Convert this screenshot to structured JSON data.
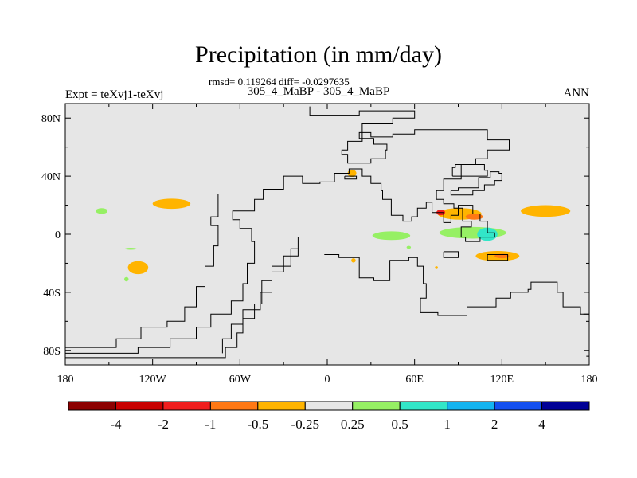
{
  "chart_data": {
    "type": "heatmap",
    "title": "Precipitation (in mm/day)",
    "stats_line": "rmsd= 0.119264 diff= -0.0297635",
    "subtitle": "305_4_MaBP - 305_4_MaBP",
    "left_label": "Expt = teXvj1-teXvj",
    "right_label": "ANN",
    "xlim": [
      -180,
      180
    ],
    "ylim": [
      -90,
      90
    ],
    "x_ticks": [
      {
        "value": -180,
        "label": "180"
      },
      {
        "value": -120,
        "label": "120W"
      },
      {
        "value": -60,
        "label": "60W"
      },
      {
        "value": 0,
        "label": "0"
      },
      {
        "value": 60,
        "label": "60E"
      },
      {
        "value": 120,
        "label": "120E"
      },
      {
        "value": 180,
        "label": "180"
      }
    ],
    "y_ticks": [
      {
        "value": 80,
        "label": "80N"
      },
      {
        "value": 40,
        "label": "40N"
      },
      {
        "value": 0,
        "label": "0"
      },
      {
        "value": -40,
        "label": "40S"
      },
      {
        "value": -80,
        "label": "80S"
      }
    ],
    "background_color": "#e6e6e6",
    "colorbar": {
      "colors": [
        "#8c0000",
        "#c80000",
        "#f01e1e",
        "#ff7814",
        "#ffb400",
        "#e6e6e6",
        "#96f064",
        "#32e6c8",
        "#14b4f0",
        "#1450f0",
        "#000096"
      ],
      "labels": [
        "-4",
        "-2",
        "-1",
        "-0.5",
        "-0.25",
        "0.25",
        "0.5",
        "1",
        "2",
        "4"
      ]
    },
    "anomalies": [
      {
        "lon": -107,
        "lat": 21,
        "rlon": 13,
        "rlat": 3.5,
        "color": "#ffb400"
      },
      {
        "lon": -130,
        "lat": -23,
        "rlon": 7,
        "rlat": 4.5,
        "color": "#ffb400"
      },
      {
        "lon": 91,
        "lat": 14,
        "rlon": 15,
        "rlat": 4,
        "color": "#ffb400"
      },
      {
        "lon": 101,
        "lat": 12,
        "rlon": 6,
        "rlat": 2,
        "color": "#ff7814"
      },
      {
        "lon": 150,
        "lat": 16,
        "rlon": 17,
        "rlat": 4,
        "color": "#ffb400"
      },
      {
        "lon": 117,
        "lat": -15,
        "rlon": 15,
        "rlat": 3.5,
        "color": "#ffb400"
      },
      {
        "lon": 120,
        "lat": -15,
        "rlon": 5,
        "rlat": 1.5,
        "color": "#ff7814"
      },
      {
        "lon": 17,
        "lat": 42,
        "rlon": 3,
        "rlat": 2.5,
        "color": "#ffb400"
      },
      {
        "lon": 78,
        "lat": 15,
        "rlon": 3,
        "rlat": 2,
        "color": "#f01e1e"
      },
      {
        "lon": 18,
        "lat": -18,
        "rlon": 1.5,
        "rlat": 1.5,
        "color": "#ffb400"
      },
      {
        "lon": 75,
        "lat": -23,
        "rlon": 1,
        "rlat": 1,
        "color": "#ffb400"
      },
      {
        "lon": -155,
        "lat": 16,
        "rlon": 4,
        "rlat": 2,
        "color": "#96f064"
      },
      {
        "lon": -135,
        "lat": -10,
        "rlon": 4,
        "rlat": 0.7,
        "color": "#96f064"
      },
      {
        "lon": -138,
        "lat": -31,
        "rlon": 1.5,
        "rlat": 1.5,
        "color": "#96f064"
      },
      {
        "lon": 44,
        "lat": -1,
        "rlon": 13,
        "rlat": 3,
        "color": "#96f064"
      },
      {
        "lon": 100,
        "lat": 1,
        "rlon": 23,
        "rlat": 4,
        "color": "#96f064"
      },
      {
        "lon": 110,
        "lat": 0,
        "rlon": 7,
        "rlat": 4.5,
        "color": "#32e6c8"
      },
      {
        "lon": 56,
        "lat": -9,
        "rlon": 1.5,
        "rlat": 1,
        "color": "#96f064"
      }
    ],
    "coastlines": [
      [
        [
          -180,
          -82
        ],
        [
          -145,
          -82
        ],
        [
          -130,
          -78
        ],
        [
          -108,
          -72
        ],
        [
          -90,
          -64
        ],
        [
          -80,
          -55
        ],
        [
          -66,
          -46
        ],
        [
          -58,
          -34
        ],
        [
          -55,
          -20
        ],
        [
          -50,
          -5
        ],
        [
          -52,
          4
        ],
        [
          -60,
          10
        ],
        [
          -65,
          16
        ],
        [
          -50,
          24
        ],
        [
          -44,
          31
        ],
        [
          -30,
          40
        ],
        [
          -22,
          40
        ],
        [
          -17,
          35
        ],
        [
          -5,
          36
        ],
        [
          5,
          42
        ],
        [
          15,
          45
        ],
        [
          24,
          40
        ],
        [
          30,
          35
        ],
        [
          37,
          30
        ],
        [
          38,
          24
        ],
        [
          44,
          13
        ],
        [
          52,
          9
        ],
        [
          58,
          12
        ],
        [
          62,
          18
        ],
        [
          68,
          22
        ],
        [
          72,
          15
        ],
        [
          80,
          8
        ],
        [
          85,
          13
        ],
        [
          90,
          20
        ],
        [
          100,
          14
        ],
        [
          105,
          9
        ],
        [
          110,
          1
        ],
        [
          115,
          -2
        ],
        [
          105,
          -5
        ],
        [
          98,
          -5
        ],
        [
          95,
          -2
        ],
        [
          92,
          5
        ],
        [
          99,
          9
        ],
        [
          93,
          18
        ],
        [
          87,
          21
        ],
        [
          80,
          24
        ],
        [
          75,
          30
        ],
        [
          80,
          38
        ],
        [
          92,
          48
        ],
        [
          102,
          52
        ],
        [
          110,
          58
        ],
        [
          123,
          58
        ],
        [
          125,
          65
        ],
        [
          110,
          72
        ],
        [
          80,
          72
        ],
        [
          60,
          69
        ],
        [
          45,
          67
        ],
        [
          30,
          70
        ],
        [
          25,
          70
        ],
        [
          22,
          66
        ],
        [
          32,
          62
        ],
        [
          41,
          58
        ],
        [
          40,
          52
        ],
        [
          30,
          49
        ],
        [
          24,
          49
        ],
        [
          14,
          55
        ],
        [
          10,
          58
        ],
        [
          14,
          64
        ],
        [
          24,
          76
        ],
        [
          45,
          80
        ],
        [
          60,
          80
        ],
        [
          60,
          85
        ],
        [
          22,
          85
        ],
        [
          22,
          82
        ],
        [
          -12,
          82
        ],
        [
          -12,
          88
        ]
      ],
      [
        [
          -180,
          -85
        ],
        [
          -90,
          -85
        ],
        [
          -70,
          -78
        ],
        [
          -62,
          -68
        ],
        [
          -58,
          -58
        ],
        [
          -50,
          -48
        ],
        [
          -45,
          -32
        ],
        [
          -38,
          -22
        ],
        [
          -25,
          -10
        ],
        [
          -20,
          -2
        ],
        [
          -20,
          -15
        ],
        [
          -30,
          -26
        ],
        [
          -38,
          -40
        ],
        [
          -46,
          -52
        ],
        [
          -58,
          -62
        ],
        [
          -66,
          -72
        ],
        [
          -72,
          -82
        ]
      ],
      [
        [
          -180,
          -78
        ],
        [
          -160,
          -78
        ],
        [
          -145,
          -72
        ],
        [
          -128,
          -64
        ],
        [
          -110,
          -60
        ],
        [
          -98,
          -50
        ],
        [
          -90,
          -36
        ],
        [
          -84,
          -22
        ],
        [
          -78,
          -8
        ],
        [
          -75,
          6
        ],
        [
          -80,
          12
        ],
        [
          -75,
          28
        ]
      ],
      [
        [
          -2,
          -14
        ],
        [
          8,
          -16
        ],
        [
          22,
          -30
        ],
        [
          32,
          -32
        ],
        [
          43,
          -18
        ],
        [
          56,
          -16
        ],
        [
          62,
          -22
        ],
        [
          66,
          -34
        ],
        [
          68,
          -44
        ],
        [
          64,
          -54
        ],
        [
          76,
          -56
        ],
        [
          91,
          -56
        ],
        [
          96,
          -50
        ],
        [
          108,
          -50
        ],
        [
          116,
          -44
        ],
        [
          124,
          -44
        ],
        [
          126,
          -40
        ],
        [
          138,
          -38
        ],
        [
          140,
          -33
        ],
        [
          152,
          -33
        ],
        [
          158,
          -40
        ],
        [
          162,
          -50
        ],
        [
          174,
          -55
        ],
        [
          180,
          -60
        ]
      ],
      [
        [
          85,
          30
        ],
        [
          90,
          32
        ],
        [
          98,
          32
        ],
        [
          104,
          39
        ],
        [
          112,
          43
        ],
        [
          118,
          42
        ],
        [
          120,
          37
        ],
        [
          115,
          34
        ],
        [
          108,
          30
        ],
        [
          100,
          27
        ],
        [
          92,
          27
        ],
        [
          85,
          30
        ]
      ],
      [
        [
          86,
          40
        ],
        [
          102,
          40
        ],
        [
          110,
          44
        ],
        [
          108,
          48
        ],
        [
          96,
          48
        ],
        [
          88,
          46
        ],
        [
          86,
          40
        ]
      ],
      [
        [
          80,
          -12
        ],
        [
          90,
          -12
        ],
        [
          90,
          -16
        ],
        [
          80,
          -16
        ],
        [
          80,
          -12
        ]
      ],
      [
        [
          110,
          -14
        ],
        [
          122,
          -14
        ],
        [
          124,
          -18
        ],
        [
          110,
          -18
        ],
        [
          110,
          -14
        ]
      ],
      [
        [
          12,
          40
        ],
        [
          20,
          40
        ],
        [
          20,
          38
        ],
        [
          12,
          38
        ],
        [
          12,
          40
        ]
      ],
      [
        [
          176,
          -55
        ],
        [
          180,
          -50
        ],
        [
          180,
          -84
        ],
        [
          178,
          -84
        ]
      ]
    ]
  }
}
